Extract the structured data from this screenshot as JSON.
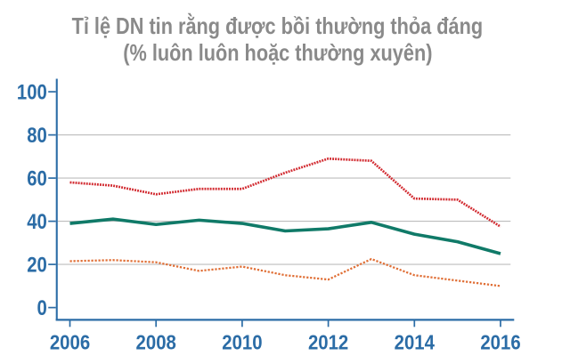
{
  "title": {
    "line1": "Tỉ lệ DN tin rằng được bồi thường thỏa đáng",
    "line2": "(% luôn luôn hoặc thường xuyên)"
  },
  "colors": {
    "axis_blue": "#2b6ca6",
    "title_gray": "#8a8a8a",
    "gridline_gray": "#bdbdbd",
    "series_red": "#d22b31",
    "series_teal": "#107a68",
    "series_orange": "#e06f36",
    "background": "#ffffff"
  },
  "chart_data": {
    "type": "line",
    "title": "Tỉ lệ DN tin rằng được bồi thường thỏa đáng",
    "subtitle": "(% luôn luôn hoặc thường xuyên)",
    "x": [
      2006,
      2007,
      2008,
      2009,
      2010,
      2011,
      2012,
      2013,
      2014,
      2015,
      2016
    ],
    "x_tick_labels": [
      "2006",
      "2008",
      "2010",
      "2012",
      "2014",
      "2016"
    ],
    "y_ticks": [
      0,
      20,
      40,
      60,
      80,
      100
    ],
    "y_tick_labels": [
      "0",
      "20",
      "40",
      "60",
      "80",
      "100"
    ],
    "xlim": [
      2006,
      2016
    ],
    "ylim": [
      0,
      100
    ],
    "grid": "horizontal gridlines at 20, 40, 60, 80",
    "legend": "none",
    "series": [
      {
        "name": "upper-line-red-dotted",
        "style": "dotted",
        "color": "#d22b31",
        "values": [
          58,
          56.5,
          52.5,
          55,
          55,
          62.5,
          69,
          68,
          50.5,
          50,
          37.5
        ]
      },
      {
        "name": "middle-line-teal-solid",
        "style": "solid",
        "color": "#107a68",
        "values": [
          39,
          41,
          38.5,
          40.5,
          39,
          35.5,
          36.5,
          39.5,
          34,
          30.5,
          25
        ]
      },
      {
        "name": "lower-line-orange-dotted",
        "style": "dotted",
        "color": "#e06f36",
        "values": [
          21.5,
          22,
          21,
          17,
          19,
          15,
          13,
          22.5,
          15,
          12.5,
          10
        ]
      }
    ]
  }
}
